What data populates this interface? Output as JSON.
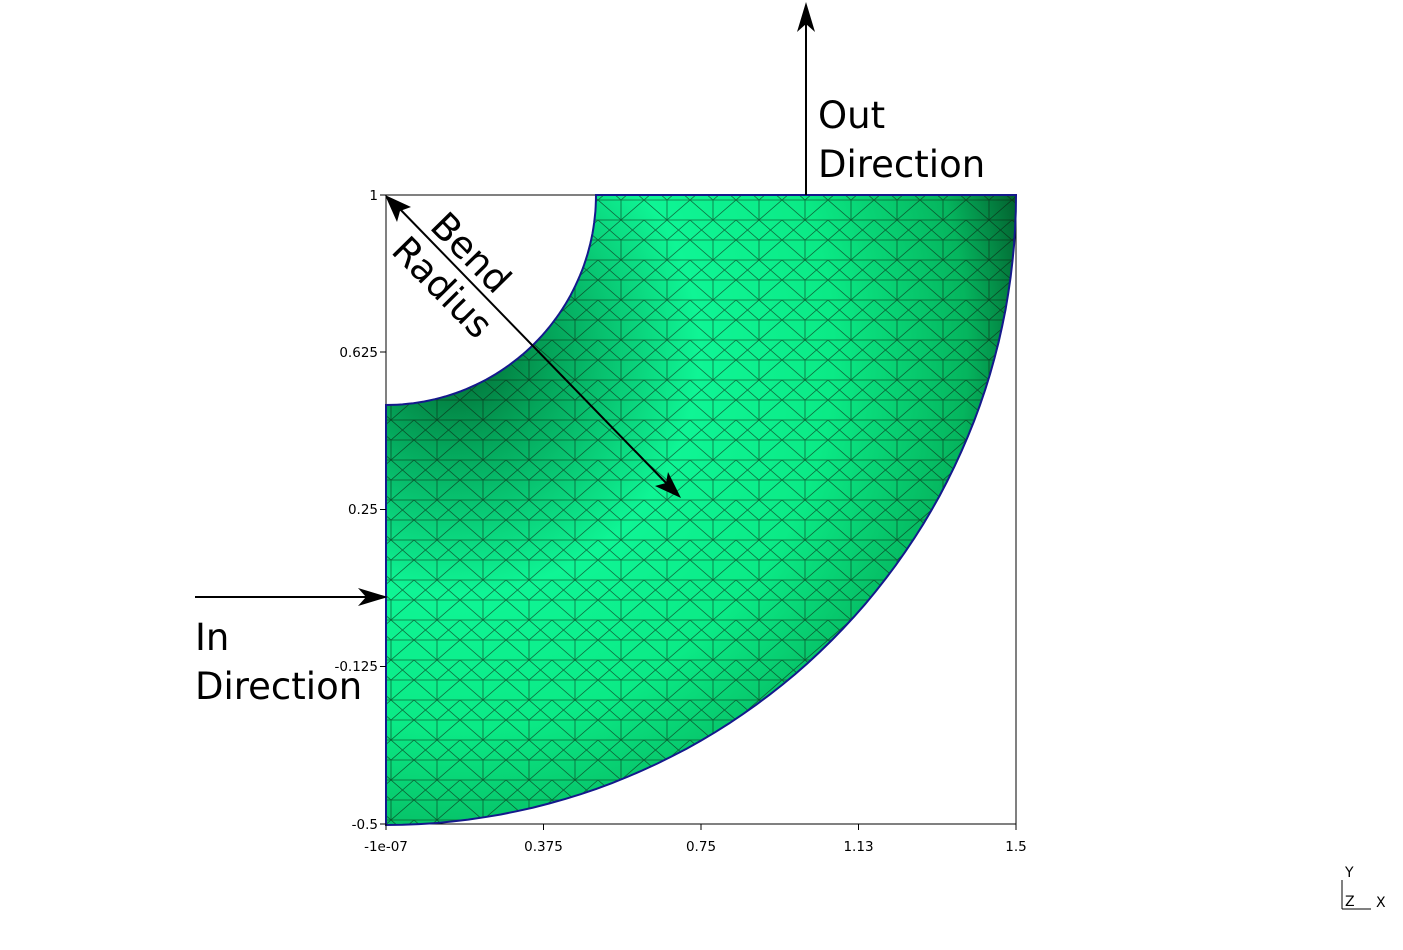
{
  "diagram": {
    "x_ticks": [
      "-1e-07",
      "0.375",
      "0.75",
      "1.13",
      "1.5"
    ],
    "y_ticks": [
      "1",
      "0.625",
      "0.25",
      "-0.125",
      "-0.5"
    ],
    "annotations": {
      "in_line1": "In",
      "in_line2": "Direction",
      "out_line1": "Out",
      "out_line2": "Direction",
      "bend_line1": "Bend",
      "bend_line2": "Radius"
    },
    "triad": {
      "y": "Y",
      "z": "Z",
      "x": "X"
    },
    "colors": {
      "mesh_light": "#0ff595",
      "mesh_mid": "#07c772",
      "mesh_dark": "#03753f",
      "mesh_edge": "#0b1e0f",
      "boundary": "#15198c"
    }
  }
}
